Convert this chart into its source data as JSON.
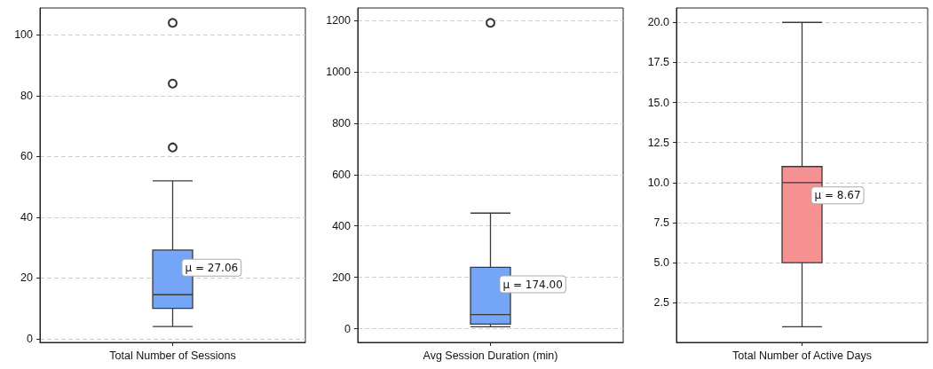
{
  "chart_data": [
    {
      "type": "box",
      "categories": [
        "Total Number of Sessions"
      ],
      "color": "#75a5f6",
      "boxes": [
        {
          "low": 4,
          "q1": 10,
          "median": 14.5,
          "q3": 29.2,
          "high": 52,
          "outliers": [
            63,
            84,
            104
          ]
        }
      ],
      "ylim": [
        -1.2,
        108.9
      ],
      "yticks": [
        0,
        20,
        40,
        60,
        80,
        100
      ],
      "grid": "y",
      "marker": "circle",
      "annotations": [
        "μ = 27.06"
      ]
    },
    {
      "type": "box",
      "categories": [
        "Avg Session Duration (min)"
      ],
      "color": "#75a5f6",
      "boxes": [
        {
          "low": 8,
          "q1": 18,
          "median": 55,
          "q3": 239,
          "high": 450,
          "outliers": [
            1190
          ]
        }
      ],
      "ylim": [
        -53,
        1248
      ],
      "yticks": [
        0,
        200,
        400,
        600,
        800,
        1000,
        1200
      ],
      "grid": "y",
      "marker": "circle",
      "annotations": [
        "μ = 174.00"
      ]
    },
    {
      "type": "box",
      "categories": [
        "Total Number of Active Days"
      ],
      "color": "#f59191",
      "boxes": [
        {
          "low": 1,
          "q1": 5,
          "median": 10,
          "q3": 11,
          "high": 20
        }
      ],
      "ylim": [
        0.02,
        20.9
      ],
      "yticks": [
        {
          "value": 2.5,
          "label": "2.5"
        },
        {
          "value": 5,
          "label": "5.0"
        },
        {
          "value": 7.5,
          "label": "7.5"
        },
        {
          "value": 10,
          "label": "10.0"
        },
        {
          "value": 12.5,
          "label": "12.5"
        },
        {
          "value": 15,
          "label": "15.0"
        },
        {
          "value": 17.5,
          "label": "17.5"
        },
        {
          "value": 20,
          "label": "20.0"
        }
      ],
      "grid": "y",
      "marker": "circle",
      "annotations": [
        "μ = 8.67"
      ]
    }
  ]
}
